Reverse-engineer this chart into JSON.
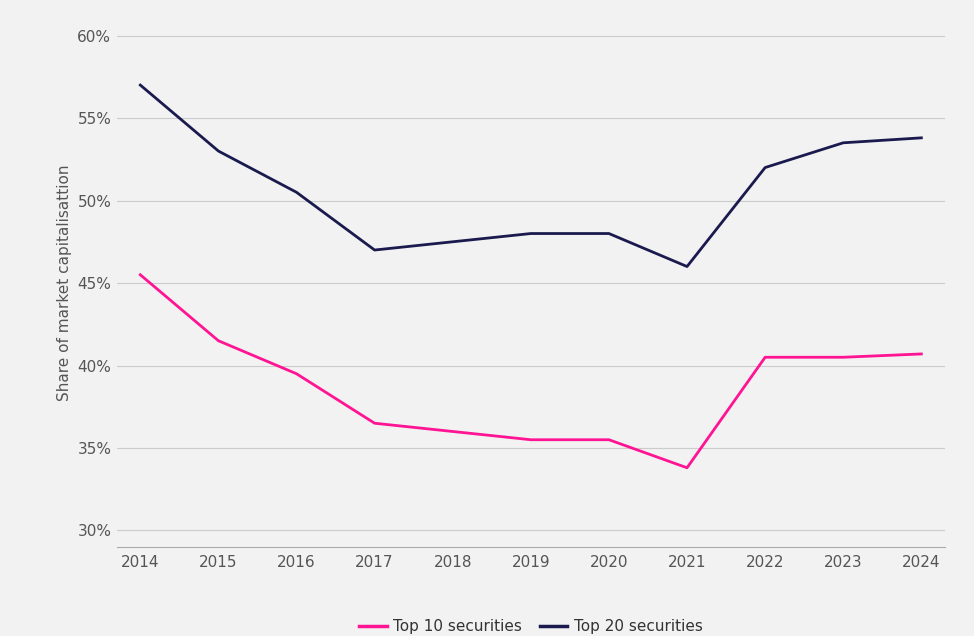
{
  "years": [
    2014,
    2015,
    2016,
    2017,
    2018,
    2019,
    2020,
    2021,
    2022,
    2023,
    2024
  ],
  "top10": [
    0.455,
    0.415,
    0.395,
    0.365,
    0.36,
    0.355,
    0.355,
    0.338,
    0.405,
    0.405,
    0.407
  ],
  "top20": [
    0.57,
    0.53,
    0.505,
    0.47,
    0.475,
    0.48,
    0.48,
    0.46,
    0.52,
    0.535,
    0.538
  ],
  "top10_color": "#FF1493",
  "top20_color": "#1a1a4e",
  "top10_label": "Top 10 securities",
  "top20_label": "Top 20 securities",
  "ylabel": "Share of market capitalisattion",
  "ylim": [
    0.29,
    0.61
  ],
  "yticks": [
    0.3,
    0.35,
    0.4,
    0.45,
    0.5,
    0.55,
    0.6
  ],
  "background_color": "#f2f2f2",
  "axes_color": "#f2f2f2",
  "grid_color": "#cccccc",
  "line_width": 2.0,
  "legend_fontsize": 11,
  "tick_fontsize": 11,
  "ylabel_fontsize": 11,
  "tick_color": "#555555"
}
